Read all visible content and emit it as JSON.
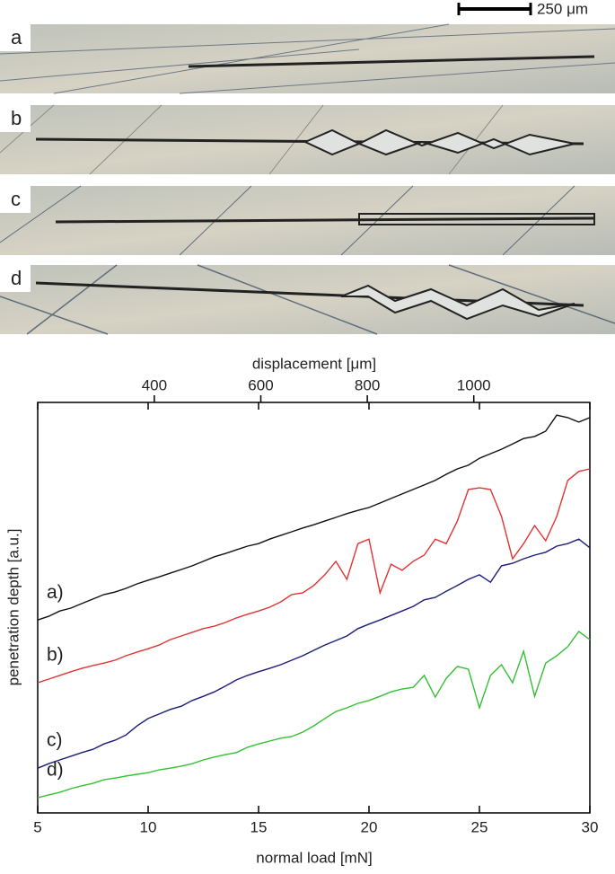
{
  "micrographs": {
    "labels": [
      "a",
      "b",
      "c",
      "d"
    ],
    "scale_bar": "250 μm"
  },
  "chart_data": {
    "type": "line",
    "xlabel": "normal load [mN]",
    "ylabel": "penetration depth [a.u.]",
    "x2label": "displacement [μm]",
    "xlim": [
      5,
      30
    ],
    "xticks": [
      5,
      10,
      15,
      20,
      25,
      30
    ],
    "x2lim": [
      181,
      1218
    ],
    "x2ticks": [
      400,
      600,
      800,
      1000
    ],
    "ylim": [
      0,
      100
    ],
    "x": [
      5,
      5.5,
      6,
      6.5,
      7,
      7.5,
      8,
      8.5,
      9,
      9.5,
      10,
      10.5,
      11,
      11.5,
      12,
      12.5,
      13,
      13.5,
      14,
      14.5,
      15,
      15.5,
      16,
      16.5,
      17,
      17.5,
      18,
      18.5,
      19,
      19.5,
      20,
      20.5,
      21,
      21.5,
      22,
      22.5,
      23,
      23.5,
      24,
      24.5,
      25,
      25.5,
      26,
      26.5,
      27,
      27.5,
      28,
      28.5,
      29,
      29.5,
      30
    ],
    "series": [
      {
        "name": "a)",
        "color": "#111111",
        "values": [
          47.0,
          47.9,
          49.2,
          49.9,
          51.0,
          52.1,
          53.2,
          53.8,
          54.7,
          55.8,
          56.7,
          57.5,
          58.4,
          59.3,
          60.2,
          61.3,
          62.4,
          63.2,
          64.1,
          65.0,
          65.6,
          66.7,
          67.6,
          68.5,
          69.4,
          70.2,
          71.1,
          72.0,
          72.9,
          73.7,
          74.4,
          75.5,
          76.6,
          77.7,
          78.8,
          79.9,
          81.0,
          82.5,
          83.8,
          84.7,
          86.4,
          87.5,
          88.6,
          89.9,
          91.2,
          91.7,
          93.0,
          96.9,
          96.3,
          95.2,
          96.3
        ]
      },
      {
        "name": "b)",
        "color": "#e03434",
        "values": [
          31.7,
          32.6,
          33.5,
          34.4,
          35.2,
          35.9,
          36.5,
          37.2,
          38.3,
          39.2,
          40.0,
          40.9,
          42.2,
          43.1,
          44.0,
          44.9,
          45.5,
          46.4,
          47.5,
          48.4,
          49.2,
          50.1,
          51.4,
          53.2,
          53.6,
          55.4,
          58.0,
          61.3,
          56.9,
          65.6,
          66.7,
          53.6,
          60.6,
          59.1,
          61.3,
          62.8,
          66.7,
          65.6,
          71.1,
          78.8,
          79.2,
          78.8,
          72.2,
          61.9,
          65.6,
          70.0,
          66.3,
          72.2,
          81.0,
          83.2,
          83.8
        ]
      },
      {
        "name": "c)",
        "color": "#1c1c7a",
        "values": [
          10.9,
          12.0,
          12.9,
          13.8,
          14.7,
          15.5,
          16.8,
          17.7,
          19.0,
          21.2,
          23.0,
          24.1,
          25.2,
          26.0,
          27.4,
          28.4,
          29.5,
          30.9,
          32.4,
          33.5,
          34.4,
          35.2,
          36.1,
          37.2,
          38.3,
          39.6,
          40.9,
          42.0,
          43.1,
          44.9,
          46.0,
          47.0,
          48.1,
          49.2,
          50.3,
          51.9,
          52.5,
          54.0,
          55.4,
          56.9,
          58.0,
          56.2,
          60.2,
          60.8,
          61.9,
          62.8,
          63.5,
          65.0,
          65.6,
          66.7,
          64.6
        ]
      },
      {
        "name": "d)",
        "color": "#34c034",
        "values": [
          3.7,
          4.4,
          5.0,
          5.9,
          6.6,
          7.2,
          8.1,
          8.5,
          9.0,
          9.4,
          9.8,
          10.5,
          10.9,
          11.4,
          12.0,
          12.9,
          13.6,
          14.2,
          14.7,
          16.0,
          16.8,
          17.5,
          18.2,
          18.6,
          19.7,
          21.2,
          23.0,
          24.7,
          25.6,
          26.7,
          27.4,
          28.4,
          29.5,
          30.2,
          30.6,
          33.5,
          28.2,
          32.8,
          35.7,
          35.0,
          25.6,
          33.5,
          36.1,
          31.7,
          39.4,
          28.4,
          36.5,
          38.3,
          40.5,
          44.2,
          42.2
        ]
      }
    ]
  }
}
